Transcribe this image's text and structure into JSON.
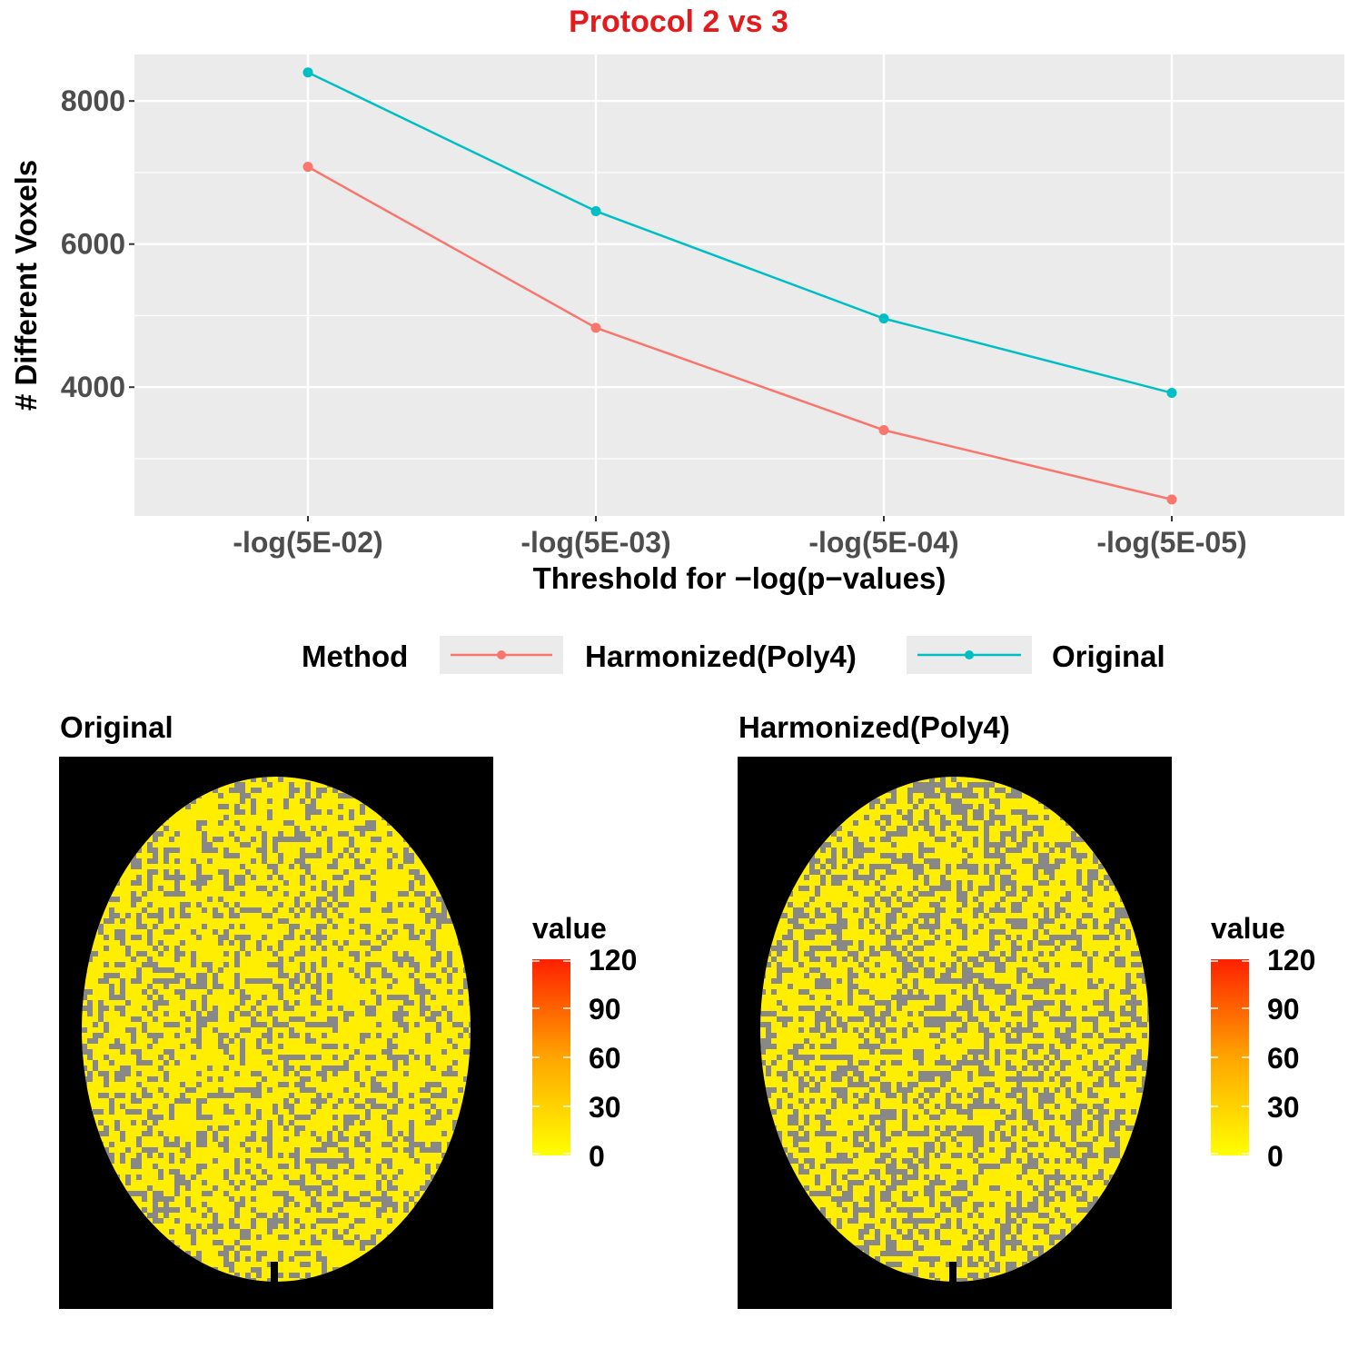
{
  "chart_data": [
    {
      "type": "line",
      "title": "Protocol 2 vs 3",
      "title_color": "#e41a1c",
      "xlabel": "Threshold for −log(p−values)",
      "ylabel": "# Different Voxels",
      "categories": [
        "-log(5E-02)",
        "-log(5E-03)",
        "-log(5E-04)",
        "-log(5E-05)"
      ],
      "ylim": [
        2200,
        8650
      ],
      "yticks": [
        4000,
        6000,
        8000
      ],
      "ytick_labels": [
        "4000",
        "6000",
        "8000"
      ],
      "grid": true,
      "legend_position": "bottom",
      "legend_title": "Method",
      "series": [
        {
          "name": "Harmonized(Poly4)",
          "color": "#f8766d",
          "values": [
            7080,
            4830,
            3400,
            2430
          ]
        },
        {
          "name": "Original",
          "color": "#00bfc4",
          "values": [
            8400,
            6460,
            4960,
            3920
          ]
        }
      ]
    },
    {
      "type": "heatmap",
      "title": "Original",
      "legend_title": "value",
      "color_scale": {
        "low": "#ffff00",
        "high": "#ff2000",
        "range": [
          0,
          120
        ]
      },
      "colorbar_ticks": [
        0,
        30,
        60,
        90,
        120
      ],
      "colorbar_tick_labels": [
        "0",
        "30",
        "60",
        "90",
        "120"
      ],
      "na_color": "#888888",
      "background_color": "#000000"
    },
    {
      "type": "heatmap",
      "title": "Harmonized(Poly4)",
      "legend_title": "value",
      "color_scale": {
        "low": "#ffff00",
        "high": "#ff2000",
        "range": [
          0,
          120
        ]
      },
      "colorbar_ticks": [
        0,
        30,
        60,
        90,
        120
      ],
      "colorbar_tick_labels": [
        "0",
        "30",
        "60",
        "90",
        "120"
      ],
      "na_color": "#888888",
      "background_color": "#000000"
    }
  ]
}
